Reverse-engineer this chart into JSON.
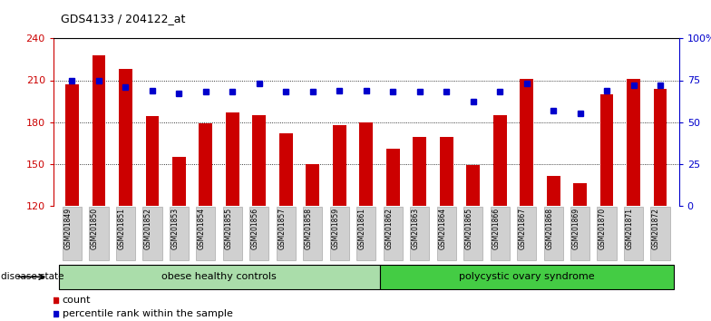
{
  "title": "GDS4133 / 204122_at",
  "samples": [
    "GSM201849",
    "GSM201850",
    "GSM201851",
    "GSM201852",
    "GSM201853",
    "GSM201854",
    "GSM201855",
    "GSM201856",
    "GSM201857",
    "GSM201858",
    "GSM201859",
    "GSM201861",
    "GSM201862",
    "GSM201863",
    "GSM201864",
    "GSM201865",
    "GSM201866",
    "GSM201867",
    "GSM201868",
    "GSM201869",
    "GSM201870",
    "GSM201871",
    "GSM201872"
  ],
  "bar_values": [
    207,
    228,
    218,
    184,
    155,
    179,
    187,
    185,
    172,
    150,
    178,
    180,
    161,
    169,
    169,
    149,
    185,
    211,
    141,
    136,
    200,
    211,
    204
  ],
  "percentile_values": [
    75,
    75,
    71,
    69,
    67,
    68,
    68,
    73,
    68,
    68,
    69,
    69,
    68,
    68,
    68,
    62,
    68,
    73,
    57,
    55,
    69,
    72,
    72
  ],
  "groups": [
    {
      "label": "obese healthy controls",
      "start": 0,
      "end": 12,
      "color": "#aaddaa"
    },
    {
      "label": "polycystic ovary syndrome",
      "start": 12,
      "end": 23,
      "color": "#44cc44"
    }
  ],
  "disease_state_label": "disease state",
  "bar_color": "#CC0000",
  "percentile_color": "#0000CC",
  "ylim_left": [
    120,
    240
  ],
  "ylim_right": [
    0,
    100
  ],
  "yticks_left": [
    120,
    150,
    180,
    210,
    240
  ],
  "yticks_right": [
    0,
    25,
    50,
    75,
    100
  ],
  "grid_values": [
    150,
    180,
    210
  ],
  "background_color": "#ffffff",
  "legend_count_label": "count",
  "legend_pct_label": "percentile rank within the sample"
}
